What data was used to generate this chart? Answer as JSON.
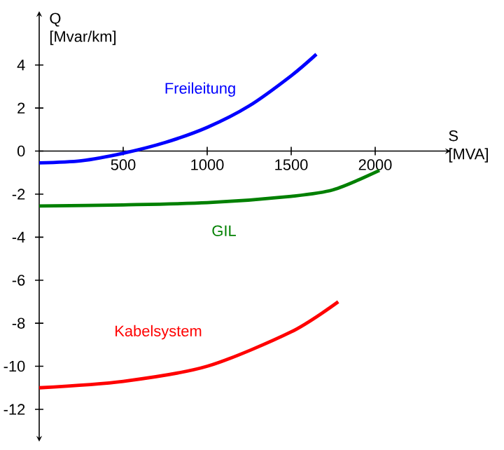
{
  "chart_data": {
    "type": "line",
    "xlabel": "S [MVA]",
    "ylabel": "Q [Mvar/km]",
    "xlim": [
      0,
      2450
    ],
    "ylim": [
      -13.5,
      6.5
    ],
    "xticks": [
      500,
      1000,
      1500,
      2000
    ],
    "yticks": [
      -12,
      -10,
      -8,
      -6,
      -4,
      -2,
      0,
      2,
      4
    ],
    "grid": false,
    "legend": false,
    "marker": "none",
    "line_style": "solid",
    "series": [
      {
        "name": "Freileitung",
        "color": "#0000ff",
        "x": [
          0,
          250,
          500,
          750,
          1000,
          1250,
          1500,
          1650
        ],
        "values": [
          -0.55,
          -0.45,
          -0.1,
          0.4,
          1.1,
          2.1,
          3.5,
          4.5
        ]
      },
      {
        "name": "GIL",
        "color": "#008000",
        "x": [
          0,
          500,
          1000,
          1500,
          1750,
          2025
        ],
        "values": [
          -2.55,
          -2.5,
          -2.4,
          -2.1,
          -1.8,
          -0.9
        ]
      },
      {
        "name": "Kabelsystem",
        "color": "#ff0000",
        "x": [
          0,
          500,
          1000,
          1500,
          1780
        ],
        "values": [
          -11,
          -10.7,
          -10,
          -8.4,
          -7
        ]
      }
    ]
  }
}
